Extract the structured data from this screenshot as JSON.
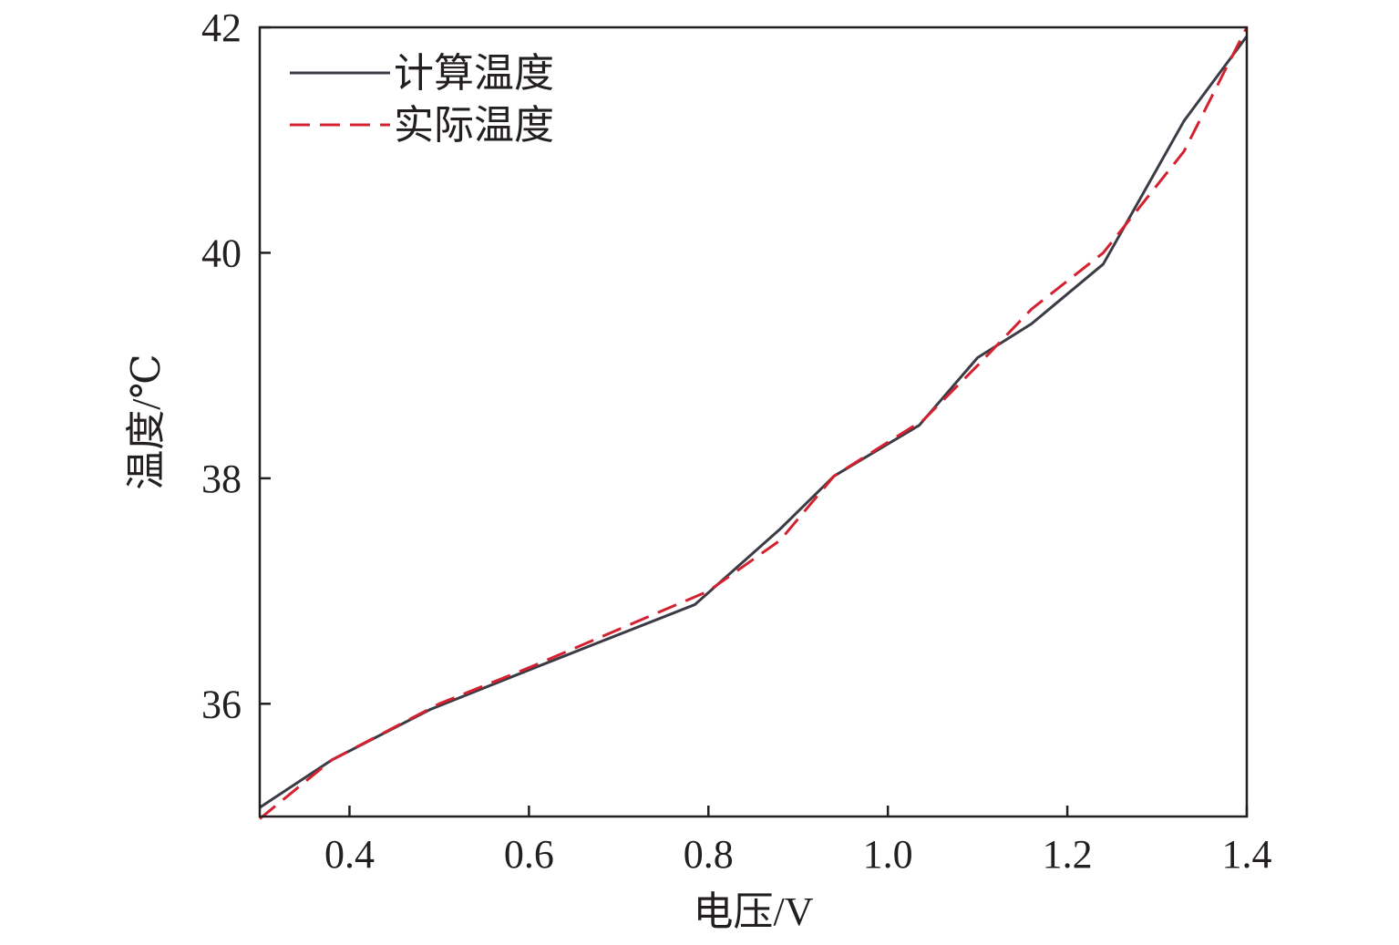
{
  "chart_data": {
    "type": "line",
    "xlabel": "电压/V",
    "ylabel": "温度/℃",
    "xlim": [
      0.3,
      1.4
    ],
    "ylim": [
      35,
      42
    ],
    "xticks": [
      0.4,
      0.6,
      0.8,
      1.0,
      1.2,
      1.4
    ],
    "xtick_labels": [
      "0.4",
      "0.6",
      "0.8",
      "1.0",
      "1.2",
      "1.4"
    ],
    "yticks": [
      36,
      38,
      40,
      42
    ],
    "ytick_labels": [
      "36",
      "38",
      "40",
      "42"
    ],
    "grid": false,
    "legend_position": "top-left",
    "series": [
      {
        "name": "计算温度",
        "style": "solid",
        "color": "#3b3b45",
        "x": [
          0.3,
          0.38,
          0.49,
          0.6,
          0.785,
          0.88,
          0.94,
          1.035,
          1.1,
          1.16,
          1.24,
          1.33,
          1.4
        ],
        "y": [
          35.08,
          35.5,
          35.95,
          36.3,
          36.88,
          37.55,
          38.02,
          38.47,
          39.07,
          39.37,
          39.9,
          41.17,
          41.92
        ]
      },
      {
        "name": "实际温度",
        "style": "dashed",
        "color": "#d4202f",
        "x": [
          0.3,
          0.38,
          0.5,
          0.6,
          0.8,
          0.88,
          0.94,
          1.04,
          1.1,
          1.16,
          1.24,
          1.33,
          1.4
        ],
        "y": [
          34.98,
          35.5,
          36.0,
          36.32,
          37.0,
          37.45,
          38.02,
          38.52,
          39.0,
          39.5,
          40.0,
          40.9,
          42.0
        ]
      }
    ]
  }
}
